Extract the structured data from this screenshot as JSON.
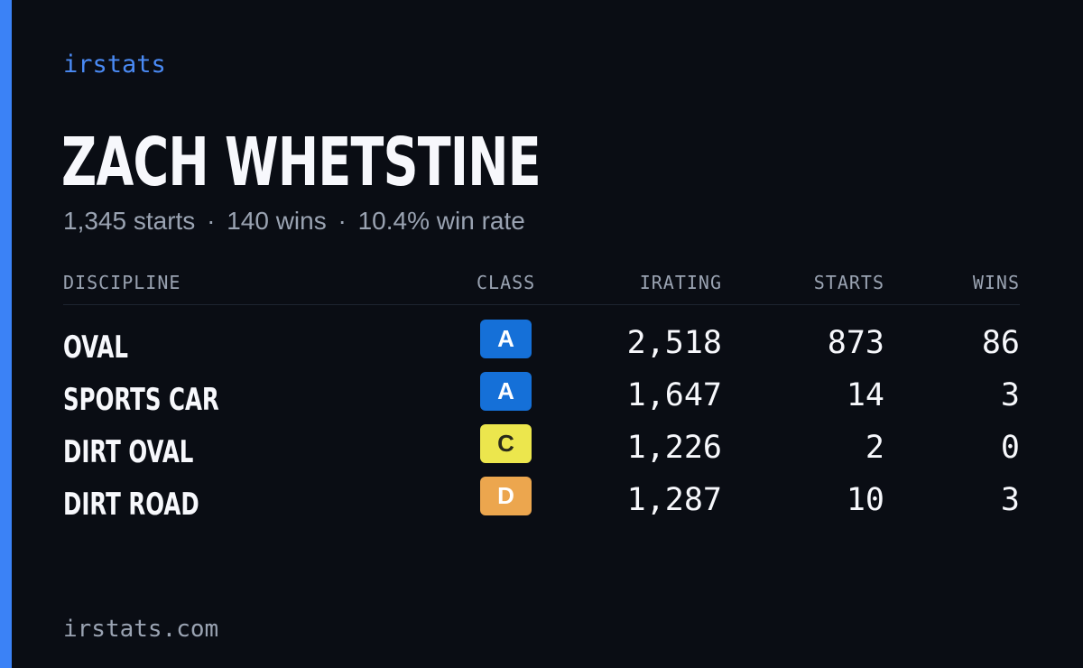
{
  "brand": "irstats",
  "player": {
    "name": "ZACH WHETSTINE"
  },
  "summary": {
    "starts": "1,345 starts",
    "wins": "140 wins",
    "win_rate": "10.4% win rate",
    "separator": "·"
  },
  "table": {
    "headers": {
      "discipline": "DISCIPLINE",
      "class": "CLASS",
      "irating": "IRATING",
      "starts": "STARTS",
      "wins": "WINS"
    },
    "rows": [
      {
        "discipline": "OVAL",
        "class": "A",
        "class_color": "#1570d8",
        "class_text_color": "#ffffff",
        "irating": "2,518",
        "starts": "873",
        "wins": "86"
      },
      {
        "discipline": "SPORTS CAR",
        "class": "A",
        "class_color": "#1570d8",
        "class_text_color": "#ffffff",
        "irating": "1,647",
        "starts": "14",
        "wins": "3"
      },
      {
        "discipline": "DIRT OVAL",
        "class": "C",
        "class_color": "#ece64d",
        "class_text_color": "#2a2a1a",
        "irating": "1,226",
        "starts": "2",
        "wins": "0"
      },
      {
        "discipline": "DIRT ROAD",
        "class": "D",
        "class_color": "#eca64e",
        "class_text_color": "#ffffff",
        "irating": "1,287",
        "starts": "10",
        "wins": "3"
      }
    ]
  },
  "footer": {
    "url": "irstats.com"
  },
  "colors": {
    "background": "#0a0d14",
    "accent": "#3b82f6",
    "muted_text": "#9aa3b2",
    "primary_text": "#f7f8fc"
  }
}
